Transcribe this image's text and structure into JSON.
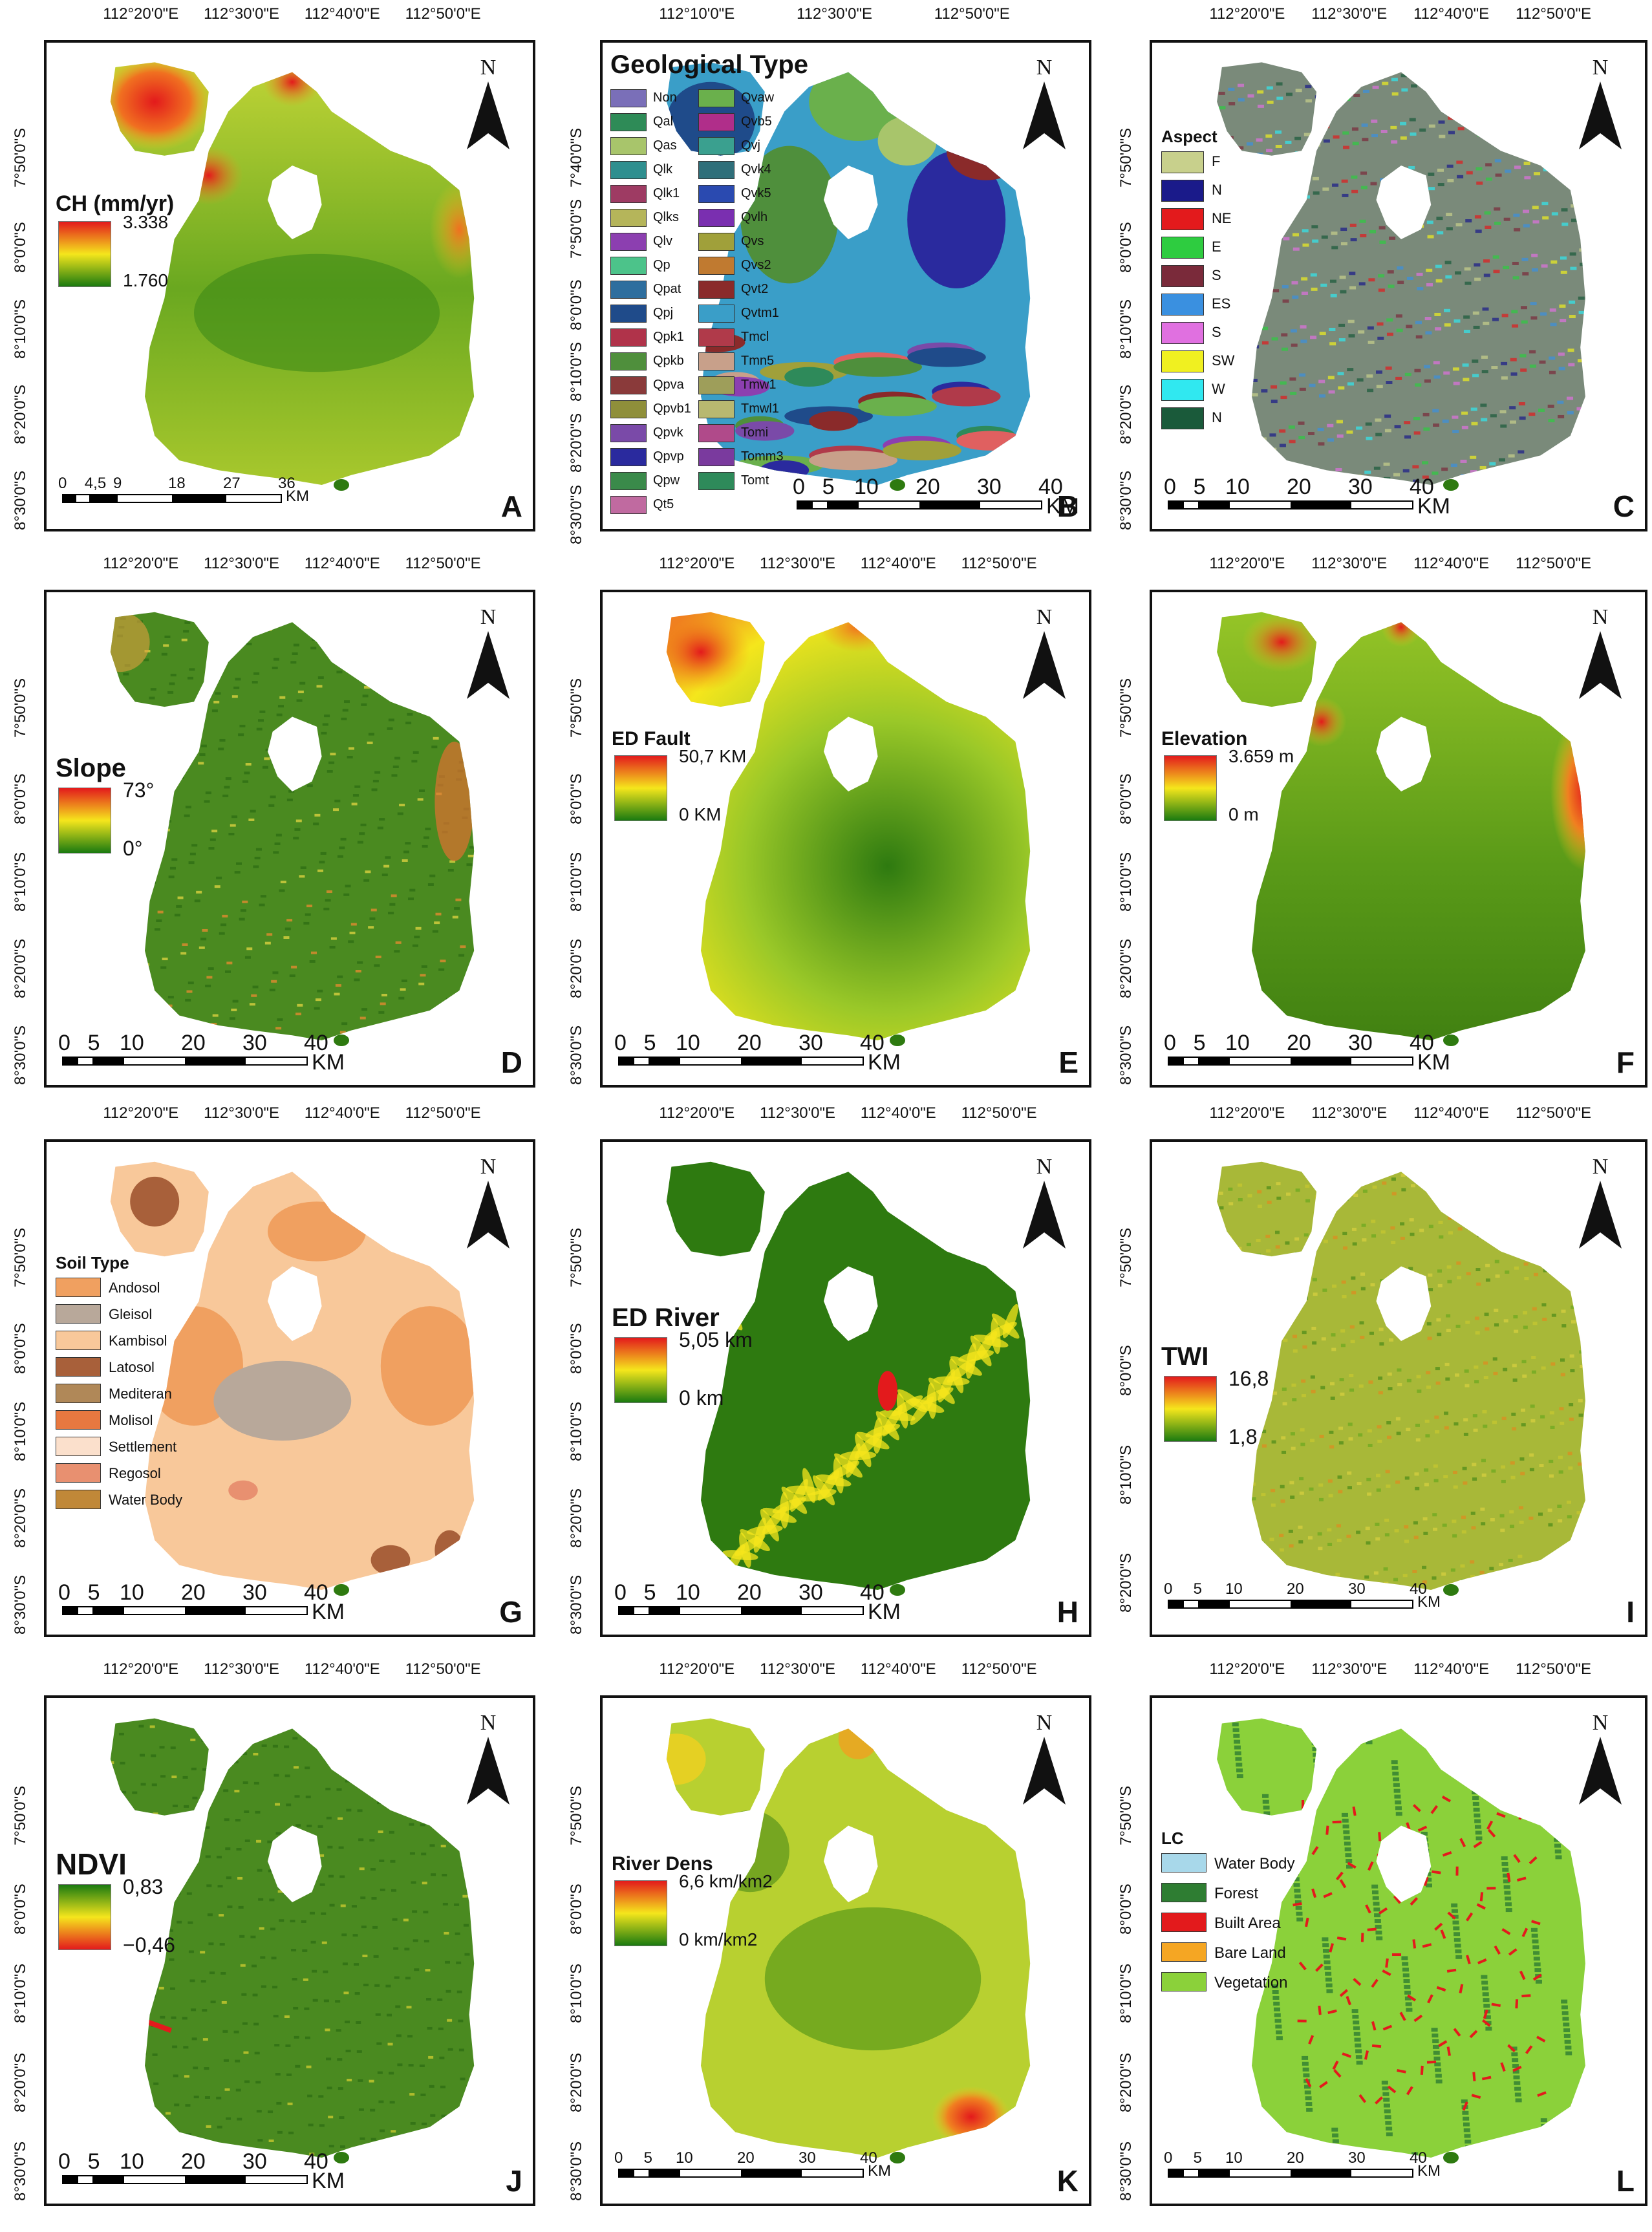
{
  "colors": {
    "rainbow_hi": "#e31a1c",
    "rainbow_mid": "#f5e61c",
    "rainbow_lo": "#1a7a10",
    "ndvi_hi": "#1a7a10",
    "ndvi_lo": "#e31a1c",
    "frame": "#111111"
  },
  "panels": [
    {
      "id": "A",
      "letter": "A",
      "kind": "gradient",
      "legend_title": "CH (mm/yr)",
      "grad_max": "3.338",
      "grad_min": "1.760",
      "top_ticks": [
        "112°20'0\"E",
        "112°30'0\"E",
        "112°40'0\"E",
        "112°50'0\"E"
      ],
      "left_ticks": [
        "7°50'0\"S",
        "8°0'0\"S",
        "8°10'0\"S",
        "8°20'0\"S",
        "8°30'0\"S"
      ],
      "scale_labels": [
        "0",
        "4,5",
        "9",
        "18",
        "27",
        "36"
      ],
      "scale_unit": "KM"
    },
    {
      "id": "B",
      "letter": "B",
      "kind": "categorical",
      "legend_title": "Geological Type",
      "top_ticks": [
        "112°10'0\"E",
        "112°30'0\"E",
        "112°50'0\"E"
      ],
      "left_ticks": [
        "7°40'0\"S",
        "7°50'0\"S",
        "8°0'0\"S",
        "8°10'0\"S",
        "8°20'0\"S",
        "8°30'0\"S"
      ],
      "scale_labels": [
        "0",
        "5",
        "10",
        "20",
        "30",
        "40"
      ],
      "scale_unit": "KM",
      "categories_col1": [
        {
          "label": "Non",
          "color": "#7a6fb8"
        },
        {
          "label": "Qal",
          "color": "#2e8b57"
        },
        {
          "label": "Qas",
          "color": "#a8c56b"
        },
        {
          "label": "Qlk",
          "color": "#2f8f8f"
        },
        {
          "label": "Qlk1",
          "color": "#9e3b63"
        },
        {
          "label": "Qlks",
          "color": "#b5b55a"
        },
        {
          "label": "Qlv",
          "color": "#8c3fb0"
        },
        {
          "label": "Qp",
          "color": "#4cc38a"
        },
        {
          "label": "Qpat",
          "color": "#2e6e9e"
        },
        {
          "label": "Qpj",
          "color": "#1f4b8a"
        },
        {
          "label": "Qpk1",
          "color": "#b0334a"
        },
        {
          "label": "Qpkb",
          "color": "#4f8f3c"
        },
        {
          "label": "Qpva",
          "color": "#8a3a3a"
        },
        {
          "label": "Qpvb1",
          "color": "#8f8f3a"
        },
        {
          "label": "Qpvk",
          "color": "#7a4aa8"
        },
        {
          "label": "Qpvp",
          "color": "#2a2a9e"
        },
        {
          "label": "Qpw",
          "color": "#3a8a4a"
        },
        {
          "label": "Qt5",
          "color": "#c06aa0"
        }
      ],
      "categories_col2": [
        {
          "label": "Qvaw",
          "color": "#6ab04c"
        },
        {
          "label": "Qvb5",
          "color": "#b02e8a"
        },
        {
          "label": "Qvj",
          "color": "#3aa08f"
        },
        {
          "label": "Qvk4",
          "color": "#2f6f7a"
        },
        {
          "label": "Qvk5",
          "color": "#2a4ab0"
        },
        {
          "label": "Qvlh",
          "color": "#7a2fb0"
        },
        {
          "label": "Qvs",
          "color": "#a0a03a"
        },
        {
          "label": "Qvs2",
          "color": "#c07a30"
        },
        {
          "label": "Qvt2",
          "color": "#8a2a2a"
        },
        {
          "label": "Qvtm1",
          "color": "#3a9ec8"
        },
        {
          "label": "Tmcl",
          "color": "#b03a4a"
        },
        {
          "label": "Tmn5",
          "color": "#c8a08a"
        },
        {
          "label": "Tmw1",
          "color": "#9e9e5a"
        },
        {
          "label": "Tmwl1",
          "color": "#b8b870"
        },
        {
          "label": "Tomi",
          "color": "#b04a8a"
        },
        {
          "label": "Tomm3",
          "color": "#7a3a9e"
        },
        {
          "label": "Tomt",
          "color": "#2e8a5a"
        }
      ]
    },
    {
      "id": "C",
      "letter": "C",
      "kind": "categorical",
      "legend_title": "Aspect",
      "top_ticks": [
        "112°20'0\"E",
        "112°30'0\"E",
        "112°40'0\"E",
        "112°50'0\"E"
      ],
      "left_ticks": [
        "7°50'0\"S",
        "8°0'0\"S",
        "8°10'0\"S",
        "8°20'0\"S",
        "8°30'0\"S"
      ],
      "scale_labels": [
        "0",
        "5",
        "10",
        "20",
        "30",
        "40"
      ],
      "scale_unit": "KM",
      "categories": [
        {
          "label": "F",
          "color": "#c8d08c"
        },
        {
          "label": "N",
          "color": "#1a1a8a"
        },
        {
          "label": "NE",
          "color": "#e31a1c"
        },
        {
          "label": "E",
          "color": "#2ecc40"
        },
        {
          "label": "S",
          "color": "#7a2a3a"
        },
        {
          "label": "ES",
          "color": "#3a90e0"
        },
        {
          "label": "S",
          "color": "#e070e0"
        },
        {
          "label": "SW",
          "color": "#f0f020"
        },
        {
          "label": "W",
          "color": "#30e8f0"
        },
        {
          "label": "N",
          "color": "#1a5a3a"
        }
      ]
    },
    {
      "id": "D",
      "letter": "D",
      "kind": "gradient",
      "legend_title": "Slope",
      "grad_max": "73°",
      "grad_min": "0°",
      "top_ticks": [
        "112°20'0\"E",
        "112°30'0\"E",
        "112°40'0\"E",
        "112°50'0\"E"
      ],
      "left_ticks": [
        "7°50'0\"S",
        "8°0'0\"S",
        "8°10'0\"S",
        "8°20'0\"S",
        "8°30'0\"S"
      ],
      "scale_labels": [
        "0",
        "5",
        "10",
        "20",
        "30",
        "40"
      ],
      "scale_unit": "KM"
    },
    {
      "id": "E",
      "letter": "E",
      "kind": "gradient",
      "legend_title": "ED Fault",
      "grad_max": "50,7 KM",
      "grad_min": "0 KM",
      "top_ticks": [
        "112°20'0\"E",
        "112°30'0\"E",
        "112°40'0\"E",
        "112°50'0\"E"
      ],
      "left_ticks": [
        "7°50'0\"S",
        "8°0'0\"S",
        "8°10'0\"S",
        "8°20'0\"S",
        "8°30'0\"S"
      ],
      "scale_labels": [
        "0",
        "5",
        "10",
        "20",
        "30",
        "40"
      ],
      "scale_unit": "KM"
    },
    {
      "id": "F",
      "letter": "F",
      "kind": "gradient",
      "legend_title": "Elevation",
      "grad_max": "3.659 m",
      "grad_min": "0 m",
      "top_ticks": [
        "112°20'0\"E",
        "112°30'0\"E",
        "112°40'0\"E",
        "112°50'0\"E"
      ],
      "left_ticks": [
        "7°50'0\"S",
        "8°0'0\"S",
        "8°10'0\"S",
        "8°20'0\"S",
        "8°30'0\"S"
      ],
      "scale_labels": [
        "0",
        "5",
        "10",
        "20",
        "30",
        "40"
      ],
      "scale_unit": "KM"
    },
    {
      "id": "G",
      "letter": "G",
      "kind": "categorical",
      "legend_title": "Soil Type",
      "top_ticks": [
        "112°20'0\"E",
        "112°30'0\"E",
        "112°40'0\"E",
        "112°50'0\"E"
      ],
      "left_ticks": [
        "7°50'0\"S",
        "8°0'0\"S",
        "8°10'0\"S",
        "8°20'0\"S",
        "8°30'0\"S"
      ],
      "scale_labels": [
        "0",
        "5",
        "10",
        "20",
        "30",
        "40"
      ],
      "scale_unit": "KM",
      "categories": [
        {
          "label": "Andosol",
          "color": "#f0a060"
        },
        {
          "label": "Gleisol",
          "color": "#b8a89a"
        },
        {
          "label": "Kambisol",
          "color": "#f8c89a"
        },
        {
          "label": "Latosol",
          "color": "#a8603a"
        },
        {
          "label": "Mediteran",
          "color": "#b08858"
        },
        {
          "label": "Molisol",
          "color": "#e87840"
        },
        {
          "label": "Settlement",
          "color": "#fbe0cc"
        },
        {
          "label": "Regosol",
          "color": "#e89070"
        },
        {
          "label": "Water Body",
          "color": "#c08838"
        }
      ]
    },
    {
      "id": "H",
      "letter": "H",
      "kind": "gradient",
      "legend_title": "ED River",
      "grad_max": "5,05 km",
      "grad_min": "0 km",
      "top_ticks": [
        "112°20'0\"E",
        "112°30'0\"E",
        "112°40'0\"E",
        "112°50'0\"E"
      ],
      "left_ticks": [
        "7°50'0\"S",
        "8°0'0\"S",
        "8°10'0\"S",
        "8°20'0\"S",
        "8°30'0\"S"
      ],
      "scale_labels": [
        "0",
        "5",
        "10",
        "20",
        "30",
        "40"
      ],
      "scale_unit": "KM"
    },
    {
      "id": "I",
      "letter": "I",
      "kind": "gradient",
      "legend_title": "TWI",
      "grad_max": "16,8",
      "grad_min": "1,8",
      "top_ticks": [
        "112°20'0\"E",
        "112°30'0\"E",
        "112°40'0\"E",
        "112°50'0\"E"
      ],
      "left_ticks": [
        "7°50'0\"S",
        "8°0'0\"S",
        "8°10'0\"S",
        "8°20'0\"S"
      ],
      "scale_labels": [
        "0",
        "5",
        "10",
        "20",
        "30",
        "40"
      ],
      "scale_unit": "KM"
    },
    {
      "id": "J",
      "letter": "J",
      "kind": "gradient",
      "legend_title": "NDVI",
      "grad_max": "0,83",
      "grad_min": "−0,46",
      "top_ticks": [
        "112°20'0\"E",
        "112°30'0\"E",
        "112°40'0\"E",
        "112°50'0\"E"
      ],
      "left_ticks": [
        "7°50'0\"S",
        "8°0'0\"S",
        "8°10'0\"S",
        "8°20'0\"S",
        "8°30'0\"S"
      ],
      "scale_labels": [
        "0",
        "5",
        "10",
        "20",
        "30",
        "40"
      ],
      "scale_unit": "KM"
    },
    {
      "id": "K",
      "letter": "K",
      "kind": "gradient",
      "legend_title": "River Dens",
      "grad_max": "6,6 km/km2",
      "grad_min": "0 km/km2",
      "top_ticks": [
        "112°20'0\"E",
        "112°30'0\"E",
        "112°40'0\"E",
        "112°50'0\"E"
      ],
      "left_ticks": [
        "7°50'0\"S",
        "8°0'0\"S",
        "8°10'0\"S",
        "8°20'0\"S",
        "8°30'0\"S"
      ],
      "scale_labels": [
        "0",
        "5",
        "10",
        "20",
        "30",
        "40"
      ],
      "scale_unit": "KM"
    },
    {
      "id": "L",
      "letter": "L",
      "kind": "categorical",
      "legend_title": "LC",
      "top_ticks": [
        "112°20'0\"E",
        "112°30'0\"E",
        "112°40'0\"E",
        "112°50'0\"E"
      ],
      "left_ticks": [
        "7°50'0\"S",
        "8°0'0\"S",
        "8°10'0\"S",
        "8°20'0\"S",
        "8°30'0\"S"
      ],
      "scale_labels": [
        "0",
        "5",
        "10",
        "20",
        "30",
        "40"
      ],
      "scale_unit": "KM",
      "categories": [
        {
          "label": "Water Body",
          "color": "#a8d8ea"
        },
        {
          "label": "Forest",
          "color": "#2e7d32"
        },
        {
          "label": "Built Area",
          "color": "#e31a1c"
        },
        {
          "label": "Bare Land",
          "color": "#f5a623"
        },
        {
          "label": "Vegetation",
          "color": "#8bd13a"
        }
      ]
    }
  ],
  "north_label": "N"
}
